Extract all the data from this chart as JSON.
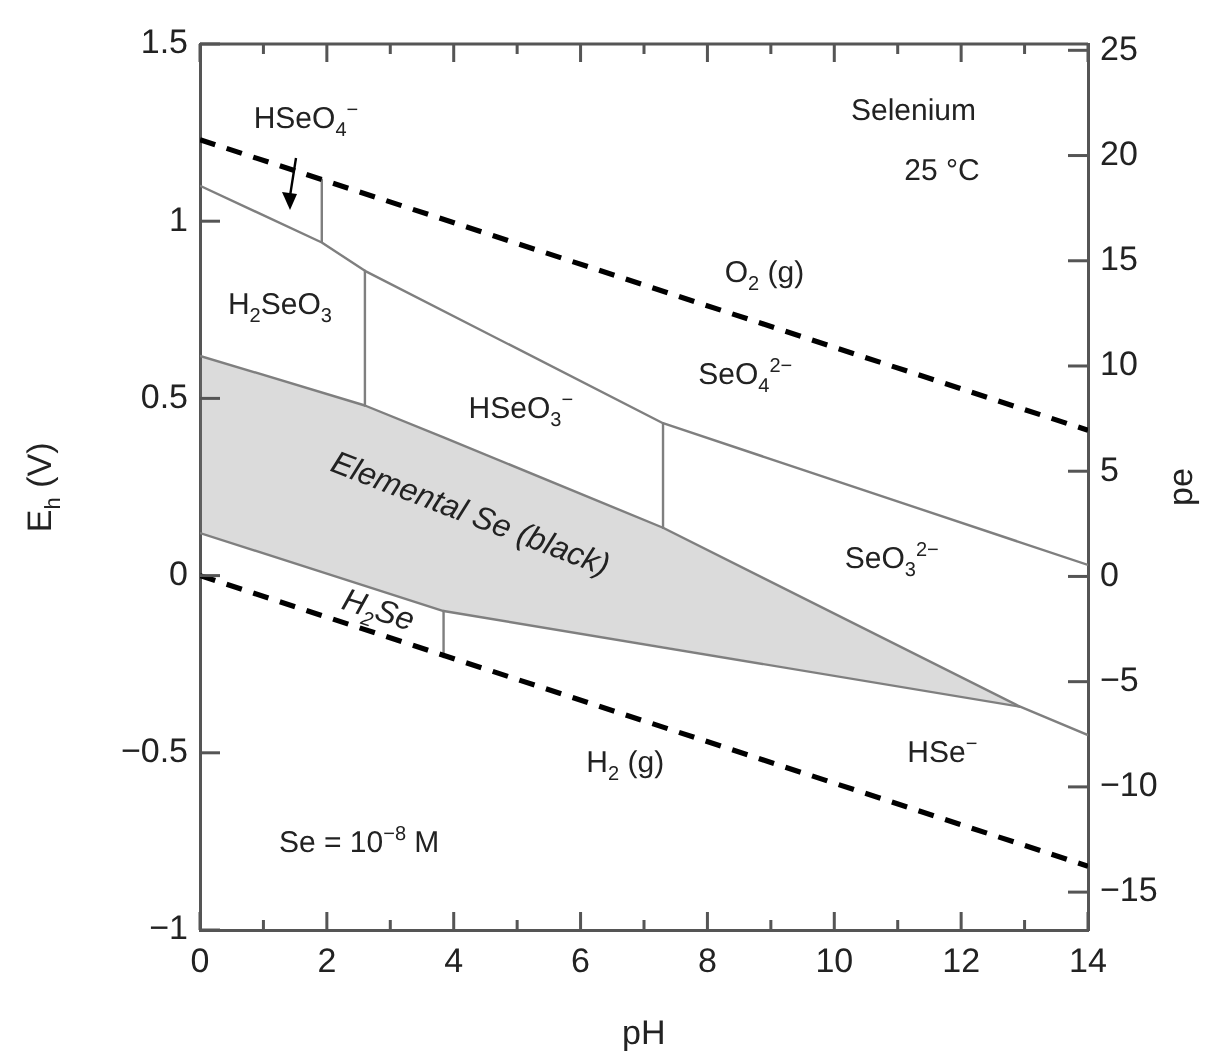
{
  "chart_data": {
    "type": "line",
    "xlabel": "pH",
    "ylabel": "E$_{h}$ (V)",
    "y2label": "pe",
    "marker": "none",
    "xlim": [
      0,
      14
    ],
    "xticks": [
      0,
      {
        "value": 1,
        "label": null
      },
      2,
      {
        "value": 3,
        "label": null
      },
      4,
      {
        "value": 5,
        "label": null
      },
      6,
      {
        "value": 7,
        "label": null
      },
      8,
      {
        "value": 9,
        "label": null
      },
      10,
      {
        "value": 11,
        "label": null
      },
      12,
      {
        "value": 13,
        "label": null
      },
      14
    ],
    "ylim": [
      -1,
      1.5
    ],
    "yticks": [
      {
        "value": -1,
        "label": "−1"
      },
      {
        "value": -0.5,
        "label": "−0.5"
      },
      0,
      0.5,
      1,
      1.5
    ],
    "y2lim": [
      -16.8,
      25.3
    ],
    "y2ticks": [
      {
        "value": -15,
        "label": "−15"
      },
      {
        "value": -10,
        "label": "−10"
      },
      {
        "value": -5,
        "label": "−5"
      },
      0,
      5,
      10,
      15,
      20,
      25
    ],
    "series": [
      {
        "color": "#000000",
        "line_style": "dashed",
        "x": [
          0,
          14
        ],
        "values": [
          1.23,
          0.41
        ]
      },
      {
        "color": "#000000",
        "line_style": "dashed",
        "x": [
          0,
          14
        ],
        "values": [
          0,
          -0.82
        ]
      },
      {
        "color": "#7f7f7f",
        "x": [
          0,
          1.92,
          2.6,
          7.3,
          14
        ],
        "values": [
          1.1,
          0.94,
          0.86,
          0.43,
          0.03
        ]
      },
      {
        "color": "#7f7f7f",
        "x": [
          1.92,
          1.92
        ],
        "values": [
          0.94,
          1.12
        ]
      },
      {
        "color": "#7f7f7f",
        "x": [
          2.6,
          2.6
        ],
        "values": [
          0.86,
          0.48
        ]
      },
      {
        "color": "#7f7f7f",
        "x": [
          7.3,
          7.3
        ],
        "values": [
          0.43,
          0.135
        ]
      },
      {
        "color": "#7f7f7f",
        "x": [
          0,
          2.6,
          3.84,
          7.3,
          12.93,
          14
        ],
        "values": [
          0.62,
          0.48,
          0.39,
          0.135,
          -0.37,
          -0.45
        ],
        "upper": [
          0.62,
          0.48,
          0.39,
          0.135,
          -0.37,
          -0.37
        ],
        "lower": [
          0.12,
          -0.03,
          -0.1,
          -0.2,
          -0.37,
          -0.37
        ]
      },
      {
        "color": "#7f7f7f",
        "x": [
          0,
          3.84,
          12.93
        ],
        "values": [
          0.12,
          -0.1,
          -0.37
        ]
      },
      {
        "color": "#7f7f7f",
        "x": [
          3.84,
          3.84
        ],
        "values": [
          -0.1,
          -0.23
        ]
      }
    ],
    "annotations": [
      "HSeO$_{4}$$^{−}$",
      "H$_{2}$SeO$_{3}$",
      "HSeO$_{3}$$^{−}$",
      "SeO$_{4}$$^{2−}$",
      "O$_{2}$ (g)",
      "Selenium",
      "25 °C",
      "Elemental Se (black)",
      "SeO$_{3}$$^{2−}$",
      "H$_{2}$Se",
      "HSe$^{−}$",
      "H$_{2}$ (g)",
      "Se = 10$^{−8}$ M"
    ]
  }
}
